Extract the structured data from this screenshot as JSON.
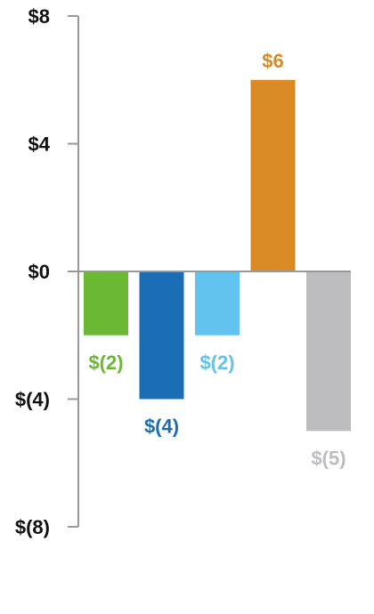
{
  "chart_data": {
    "type": "bar",
    "title": "",
    "xlabel": "",
    "ylabel": "",
    "categories": [
      "",
      "",
      "",
      "",
      ""
    ],
    "values": [
      -2,
      -4,
      -2,
      6,
      -5
    ],
    "data_labels": [
      "$(2)",
      "$(4)",
      "$(2)",
      "$6",
      "$(5)"
    ],
    "bar_colors": [
      "#6ab833",
      "#1b6db5",
      "#62c4ee",
      "#d98a24",
      "#bdbdbf"
    ],
    "ylim": [
      -8,
      8
    ],
    "yticks": [
      8,
      4,
      0,
      -4,
      -8
    ],
    "ytick_labels": [
      "$8",
      "$4",
      "$0",
      "$(4)",
      "$(8)"
    ],
    "grid": false,
    "legend": "none",
    "axis_color": "#999999"
  }
}
